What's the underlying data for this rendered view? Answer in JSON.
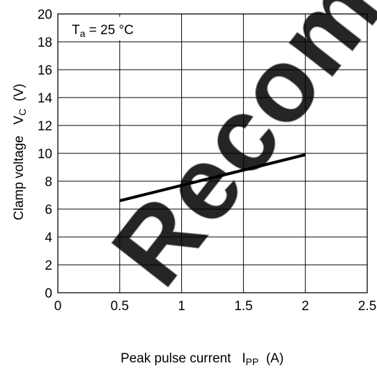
{
  "chart_data": {
    "type": "line",
    "title": "",
    "annotation": {
      "symbol": "T",
      "subscript": "a",
      "rest": " = 25 °C"
    },
    "xlabel": {
      "text": "Peak pulse current",
      "symbol": "I",
      "subscript": "PP",
      "unit": "(A)"
    },
    "ylabel": {
      "text": "Clamp voltage",
      "symbol": "V",
      "subscript": "C",
      "unit": "(V)"
    },
    "xlim": [
      0,
      2.5
    ],
    "ylim": [
      0,
      20
    ],
    "x_ticks": [
      {
        "value": 0,
        "label": "0"
      },
      {
        "value": 0.5,
        "label": "0.5"
      },
      {
        "value": 1,
        "label": "1"
      },
      {
        "value": 1.5,
        "label": "1.5"
      },
      {
        "value": 2,
        "label": "2"
      },
      {
        "value": 2.5,
        "label": "2.5"
      }
    ],
    "y_ticks": [
      {
        "value": 0,
        "label": "0"
      },
      {
        "value": 2,
        "label": "2"
      },
      {
        "value": 4,
        "label": "4"
      },
      {
        "value": 6,
        "label": "6"
      },
      {
        "value": 8,
        "label": "8"
      },
      {
        "value": 10,
        "label": "10"
      },
      {
        "value": 12,
        "label": "12"
      },
      {
        "value": 14,
        "label": "14"
      },
      {
        "value": 16,
        "label": "16"
      },
      {
        "value": 18,
        "label": "18"
      },
      {
        "value": 20,
        "label": "20"
      }
    ],
    "grid": true,
    "series": [
      {
        "x": [
          0.5,
          2.0
        ],
        "y": [
          6.6,
          9.9
        ],
        "color": "#000000"
      }
    ]
  },
  "watermark": {
    "text": "Recommended",
    "color": "#9a9a9a"
  }
}
